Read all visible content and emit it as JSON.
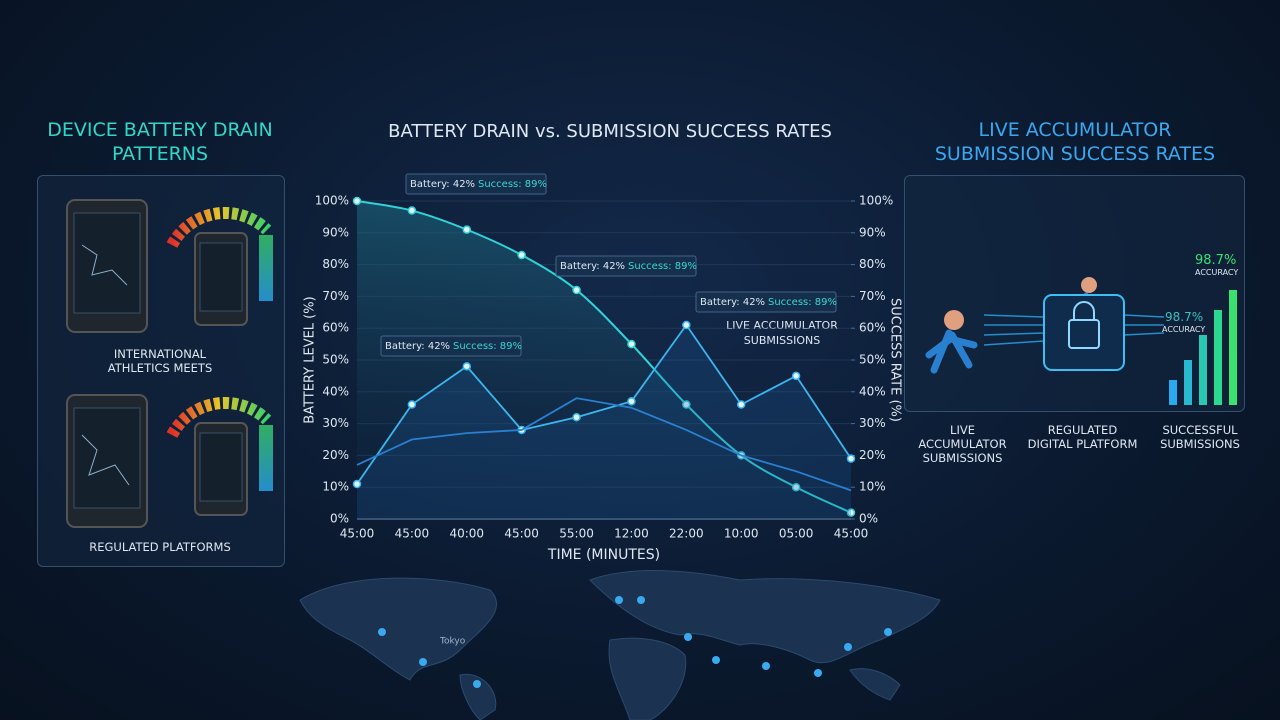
{
  "chart_data": {
    "type": "line",
    "title": "BATTERY DRAIN vs. SUBMISSION SUCCESS RATES",
    "x_label": "TIME (MINUTES)",
    "y_label": "BATTERY LEVEL (%)",
    "y2_label": "SUCCESS RATE (%)",
    "categories": [
      "45:00",
      "45:00",
      "40:00",
      "45:00",
      "55:00",
      "12:00",
      "22:00",
      "10:00",
      "05:00",
      "45:00"
    ],
    "series": [
      {
        "color": "#2fd3d8",
        "values": [
          100,
          97,
          91,
          83,
          72,
          55,
          36,
          20,
          10,
          2
        ]
      },
      {
        "color": "#3bb6f0",
        "axis": "y2",
        "values": [
          11,
          36,
          48,
          28,
          32,
          37,
          61,
          36,
          45,
          19
        ]
      },
      {
        "color": "#2a7fd0",
        "axis": "y2",
        "values": [
          17,
          25,
          27,
          28,
          38,
          35,
          28,
          20,
          15,
          9
        ]
      }
    ],
    "ylim": [
      0,
      100
    ],
    "yticks": [
      {
        "value": 0,
        "label": "0%"
      },
      {
        "value": 10,
        "label": "10%"
      },
      {
        "value": 20,
        "label": "20%"
      },
      {
        "value": 30,
        "label": "30%"
      },
      {
        "value": 40,
        "label": "40%"
      },
      {
        "value": 50,
        "label": "50%"
      },
      {
        "value": 60,
        "label": "60%"
      },
      {
        "value": 70,
        "label": "70%"
      },
      {
        "value": 80,
        "label": "80%"
      },
      {
        "value": 90,
        "label": "90%"
      },
      {
        "value": 100,
        "label": "100%"
      }
    ],
    "y2lim": [
      0,
      100
    ],
    "y2ticks": [
      {
        "value": 0,
        "label": "0%"
      },
      {
        "value": 10,
        "label": "10%"
      },
      {
        "value": 20,
        "label": "20%"
      },
      {
        "value": 30,
        "label": "30%"
      },
      {
        "value": 40,
        "label": "40%"
      },
      {
        "value": 50,
        "label": "50%"
      },
      {
        "value": 60,
        "label": "60%"
      },
      {
        "value": 70,
        "label": "70%"
      },
      {
        "value": 80,
        "label": "80%"
      },
      {
        "value": 90,
        "label": "90%"
      },
      {
        "value": 100,
        "label": "100%"
      }
    ],
    "grid": true,
    "annotations": [
      {
        "battery": "Battery: 42%",
        "success": "Success: 89%"
      },
      {
        "battery": "Battery: 42%",
        "success": "Success: 89%"
      },
      {
        "battery": "Battery: 42%",
        "success": "Success: 89%"
      },
      {
        "battery": "Battery: 42%",
        "success": "Success: 89%"
      }
    ],
    "peak_label": "LIVE ACCUMULATOR SUBMISSIONS"
  },
  "left_panel": {
    "title": "DEVICE BATTERY DRAIN PATTERNS",
    "top_caption": "INTERNATIONAL ATHLETICS MEETS",
    "bottom_caption": "REGULATED PLATFORMS"
  },
  "right_panel": {
    "title": "LIVE ACCUMULATOR SUBMISSION SUCCESS RATES",
    "accuracy_value": "98.7%",
    "accuracy_label": "ACCURACY",
    "captions": [
      "LIVE ACCUMULATOR SUBMISSIONS",
      "REGULATED DIGITAL PLATFORM",
      "SUCCESSFUL SUBMISSIONS"
    ]
  },
  "map": {
    "city_label": "Tokyo"
  }
}
